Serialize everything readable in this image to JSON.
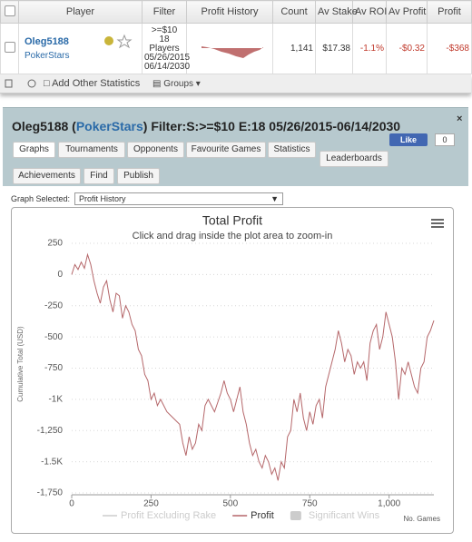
{
  "table": {
    "headers": [
      "Player",
      "Filter",
      "Profit History",
      "Count",
      "Av Stake",
      "Av ROI",
      "Av Profit",
      "Profit"
    ],
    "row": {
      "player": "Oleg5188",
      "site": "PokerStars",
      "filter": [
        ">=$10",
        "18",
        "Players",
        "05/26/2015",
        "06/14/2030"
      ],
      "count": "1,141",
      "av_stake": "$17.38",
      "av_roi": "-1.1%",
      "av_profit": "-$0.32",
      "profit": "-$368"
    }
  },
  "toolbar": {
    "add_stats": "Add Other Statistics",
    "groups": "Groups"
  },
  "panel": {
    "player": "Oleg5188",
    "site": "PokerStars",
    "filter": "Filter:S:>=$10 E:18 05/26/2015-06/14/2030",
    "like": "Like",
    "like_count": "0",
    "tabs": [
      "Graphs",
      "Tournaments",
      "Opponents",
      "Favourite Games",
      "Statistics",
      "Leaderboards",
      "Achievements",
      "Find",
      "Publish"
    ],
    "graph_label": "Graph Selected:",
    "graph_value": "Profit History"
  },
  "chart_data": {
    "type": "line",
    "title": "Total Profit",
    "subtitle": "Click and drag inside the plot area to zoom-in",
    "y_label": "Cumulative Total (USD)",
    "x_label": "No. Games",
    "xlim": [
      0,
      1141
    ],
    "ylim": [
      -1750,
      250
    ],
    "xticks": [
      0,
      250,
      500,
      750,
      {
        "value": 1000,
        "label": "1,000"
      }
    ],
    "yticks": [
      250,
      0,
      -250,
      -500,
      -750,
      {
        "value": -1000,
        "label": "-1K"
      },
      {
        "value": -1250,
        "label": "-1,250"
      },
      {
        "value": -1500,
        "label": "-1.5K"
      },
      {
        "value": -1750,
        "label": "-1,750"
      }
    ],
    "grid": true,
    "x": [
      0,
      10,
      20,
      30,
      40,
      50,
      60,
      70,
      80,
      90,
      100,
      110,
      120,
      130,
      140,
      150,
      160,
      170,
      180,
      190,
      200,
      210,
      220,
      230,
      240,
      250,
      260,
      270,
      280,
      300,
      320,
      340,
      350,
      360,
      370,
      380,
      390,
      400,
      410,
      420,
      430,
      450,
      470,
      480,
      490,
      500,
      510,
      520,
      530,
      540,
      550,
      560,
      570,
      580,
      590,
      600,
      610,
      620,
      630,
      640,
      650,
      660,
      670,
      680,
      690,
      700,
      710,
      720,
      730,
      740,
      750,
      760,
      770,
      780,
      790,
      800,
      810,
      820,
      830,
      840,
      850,
      860,
      870,
      880,
      890,
      900,
      910,
      920,
      930,
      940,
      950,
      960,
      970,
      980,
      990,
      1000,
      1010,
      1020,
      1030,
      1040,
      1050,
      1060,
      1080,
      1090,
      1100,
      1110,
      1120,
      1130,
      1141
    ],
    "series": [
      {
        "name": "Profit Excluding Rake",
        "visible": false,
        "symbol": "line",
        "color": "#cccccc"
      },
      {
        "name": "Profit",
        "visible": true,
        "symbol": "line",
        "color": "#b5676a",
        "values": [
          0,
          80,
          40,
          100,
          50,
          160,
          80,
          -50,
          -150,
          -230,
          -100,
          -50,
          -200,
          -300,
          -150,
          -170,
          -350,
          -250,
          -300,
          -400,
          -450,
          -600,
          -650,
          -800,
          -850,
          -1000,
          -950,
          -1050,
          -1000,
          -1100,
          -1150,
          -1200,
          -1350,
          -1450,
          -1300,
          -1400,
          -1350,
          -1200,
          -1250,
          -1050,
          -1000,
          -1100,
          -950,
          -850,
          -950,
          -1000,
          -1100,
          -1000,
          -900,
          -1100,
          -1200,
          -1350,
          -1450,
          -1400,
          -1500,
          -1550,
          -1450,
          -1500,
          -1600,
          -1550,
          -1650,
          -1500,
          -1550,
          -1300,
          -1250,
          -1000,
          -1100,
          -950,
          -1150,
          -1250,
          -1100,
          -1200,
          -1050,
          -1000,
          -1150,
          -900,
          -800,
          -700,
          -600,
          -450,
          -550,
          -700,
          -600,
          -650,
          -800,
          -700,
          -750,
          -700,
          -850,
          -550,
          -450,
          -400,
          -600,
          -500,
          -300,
          -400,
          -500,
          -700,
          -1000,
          -750,
          -800,
          -700,
          -900,
          -950,
          -750,
          -700,
          -500,
          -450,
          -368
        ]
      },
      {
        "name": "Significant Wins",
        "visible": false,
        "symbol": "box",
        "color": "#cccccc"
      }
    ]
  }
}
